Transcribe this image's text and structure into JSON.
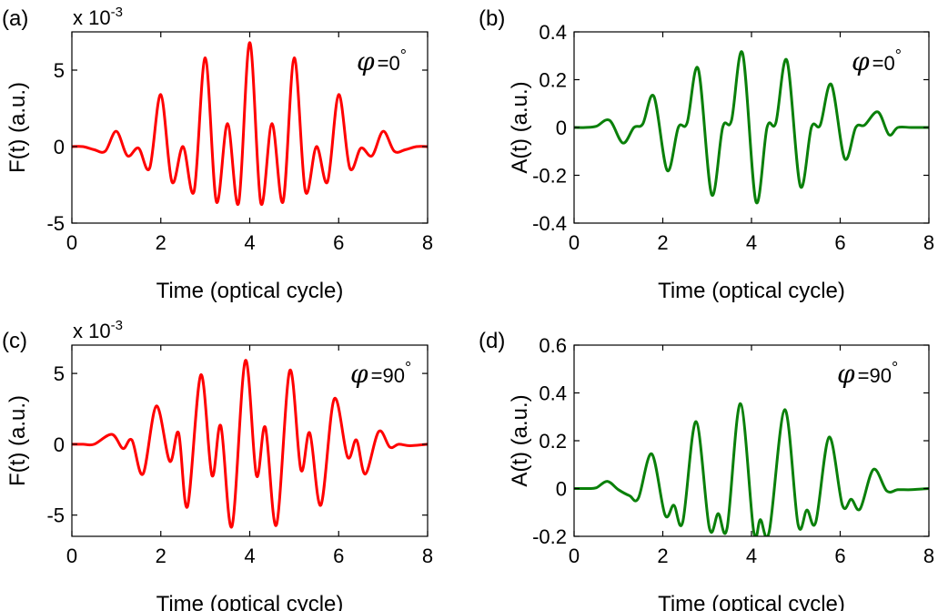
{
  "chart_data": [
    {
      "type": "line",
      "panel_label": "(a)",
      "xlabel": "Time (optical cycle)",
      "ylabel": "F(t) (a.u.)",
      "scale_note": "x 10",
      "scale_exp": "-3",
      "annotation": {
        "symbol": "φ",
        "text": "=0",
        "degree": "°"
      },
      "xlim": [
        0,
        8
      ],
      "ylim": [
        -5,
        7.5
      ],
      "xticks": [
        "0",
        "2",
        "4",
        "6",
        "8"
      ],
      "yticks": [
        "-5",
        "0",
        "5"
      ],
      "color": "#ff0000",
      "series": [
        {
          "x": [
            0,
            0.25,
            0.5,
            0.75,
            1.0,
            1.25,
            1.5,
            1.75,
            2.0,
            2.25,
            2.5,
            2.75,
            3.0,
            3.25,
            3.5,
            3.75,
            4.0,
            4.25,
            4.5,
            4.75,
            5.0,
            5.25,
            5.5,
            5.75,
            6.0,
            6.25,
            6.5,
            6.75,
            7.0,
            7.25,
            7.5,
            7.75,
            8.0
          ],
          "y": [
            0,
            0,
            -0.2,
            -0.3,
            1.0,
            -0.6,
            -0.1,
            -1.4,
            3.4,
            -2.3,
            0,
            -2.9,
            5.8,
            -3.6,
            1.5,
            -3.7,
            6.8,
            -3.7,
            1.5,
            -3.6,
            5.8,
            -2.9,
            0,
            -2.3,
            3.4,
            -1.4,
            -0.1,
            -0.6,
            1.0,
            -0.3,
            -0.2,
            0,
            0
          ]
        }
      ]
    },
    {
      "type": "line",
      "panel_label": "(b)",
      "xlabel": "Time (optical cycle)",
      "ylabel": "A(t) (a.u.)",
      "annotation": {
        "symbol": "φ",
        "text": "=0",
        "degree": "°"
      },
      "xlim": [
        0,
        8
      ],
      "ylim": [
        -0.4,
        0.4
      ],
      "xticks": [
        "0",
        "2",
        "4",
        "6",
        "8"
      ],
      "yticks": [
        "-0.4",
        "-0.2",
        "0",
        "0.2",
        "0.4"
      ],
      "color": "#0a800a",
      "series": [
        {
          "x": [
            0,
            0.25,
            0.5,
            0.8,
            1.1,
            1.35,
            1.55,
            1.8,
            2.1,
            2.35,
            2.55,
            2.8,
            3.1,
            3.35,
            3.55,
            3.8,
            4.1,
            4.35,
            4.55,
            4.8,
            5.1,
            5.35,
            5.55,
            5.8,
            6.1,
            6.35,
            6.55,
            6.85,
            7.1,
            7.3,
            7.6,
            8.0
          ],
          "y": [
            0,
            0,
            0.005,
            0.03,
            -0.065,
            0.0,
            0.015,
            0.13,
            -0.18,
            0.0,
            0.02,
            0.245,
            -0.28,
            0.0,
            0.03,
            0.31,
            -0.31,
            0.0,
            0.02,
            0.28,
            -0.245,
            0.0,
            0.01,
            0.18,
            -0.13,
            0.0,
            0.01,
            0.065,
            -0.03,
            0.0,
            0.0,
            0.0
          ]
        }
      ]
    },
    {
      "type": "line",
      "panel_label": "(c)",
      "xlabel": "Time (optical cycle)",
      "ylabel": "F(t) (a.u.)",
      "scale_note": "x 10",
      "scale_exp": "-3",
      "annotation": {
        "symbol": "φ",
        "text": "=90",
        "degree": "°"
      },
      "xlim": [
        0,
        8
      ],
      "ylim": [
        -6.5,
        7
      ],
      "xticks": [
        "0",
        "2",
        "4",
        "6",
        "8"
      ],
      "yticks": [
        "-5",
        "0",
        "5"
      ],
      "color": "#ff0000",
      "series": [
        {
          "x": [
            0,
            0.25,
            0.5,
            0.9,
            1.15,
            1.35,
            1.6,
            1.9,
            2.2,
            2.4,
            2.6,
            2.9,
            3.15,
            3.35,
            3.6,
            3.9,
            4.15,
            4.35,
            4.6,
            4.9,
            5.15,
            5.35,
            5.6,
            5.9,
            6.2,
            6.4,
            6.6,
            6.9,
            7.15,
            7.35,
            7.6,
            8.0
          ],
          "y": [
            0,
            0,
            0,
            0.7,
            -0.3,
            0.3,
            -2.1,
            2.7,
            -1.2,
            0.8,
            -4.4,
            4.9,
            -2.2,
            1.3,
            -5.8,
            5.9,
            -2.2,
            1.2,
            -5.7,
            5.2,
            -1.8,
            0.8,
            -4.3,
            3.2,
            -0.9,
            0.3,
            -2.1,
            0.9,
            -0.2,
            0.0,
            -0.1,
            0.0
          ]
        }
      ]
    },
    {
      "type": "line",
      "panel_label": "(d)",
      "xlabel": "Time (optical cycle)",
      "ylabel": "A(t) (a.u.)",
      "annotation": {
        "symbol": "φ",
        "text": "=90",
        "degree": "°"
      },
      "xlim": [
        0,
        8
      ],
      "ylim": [
        -0.2,
        0.6
      ],
      "xticks": [
        "0",
        "2",
        "4",
        "6",
        "8"
      ],
      "yticks": [
        "-0.2",
        "0",
        "0.2",
        "0.4",
        "0.6"
      ],
      "color": "#0a800a",
      "series": [
        {
          "x": [
            0,
            0.3,
            0.5,
            0.75,
            1.0,
            1.25,
            1.45,
            1.75,
            2.05,
            2.25,
            2.45,
            2.75,
            3.05,
            3.25,
            3.45,
            3.75,
            4.05,
            4.2,
            4.4,
            4.75,
            5.05,
            5.25,
            5.45,
            5.75,
            6.05,
            6.25,
            6.45,
            6.75,
            7.05,
            7.3,
            7.6,
            8.0
          ],
          "y": [
            0,
            0,
            0.003,
            0.03,
            -0.005,
            -0.03,
            -0.04,
            0.145,
            -0.11,
            -0.07,
            -0.14,
            0.28,
            -0.165,
            -0.105,
            -0.165,
            0.355,
            -0.18,
            -0.13,
            -0.18,
            0.33,
            -0.15,
            -0.09,
            -0.14,
            0.215,
            -0.07,
            -0.045,
            -0.085,
            0.08,
            -0.01,
            -0.005,
            -0.005,
            0.0
          ]
        }
      ]
    }
  ]
}
